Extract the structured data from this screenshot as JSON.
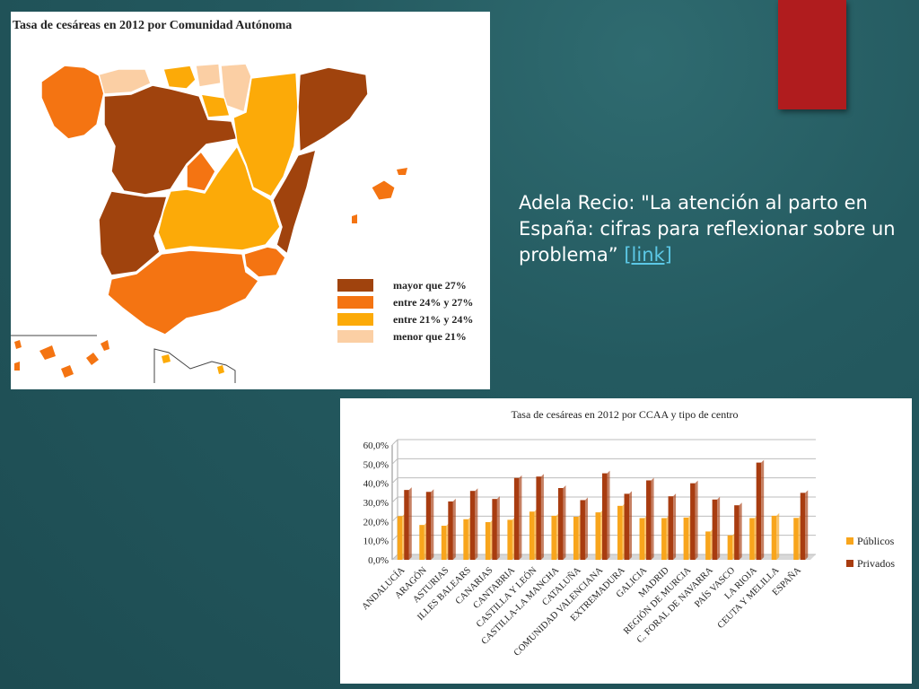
{
  "slide": {
    "quote_text": "Adela Recio: \"La atención al parto en España: cifras para reflexionar sobre un problema”",
    "link_label": "[link]"
  },
  "map": {
    "title": "Tasa de cesáreas en 2012 por Comunidad Autónoma",
    "legend": [
      {
        "label": "mayor que 27%",
        "color": "#a0430d"
      },
      {
        "label": "entre 24% y 27%",
        "color": "#f47412"
      },
      {
        "label": "entre 21% y 24%",
        "color": "#fcaa08"
      },
      {
        "label": "menor que 21%",
        "color": "#fbcfa4"
      }
    ]
  },
  "chart_data": {
    "type": "bar",
    "title": "Tasa de cesáreas en 2012 por CCAA y tipo de centro",
    "categories": [
      "ANDALUCÍA",
      "ARAGÓN",
      "ASTURIAS",
      "ILLES BALEARS",
      "CANARIAS",
      "CANTABRIA",
      "CASTILLA Y LEÓN",
      "CASTILLA-LA MANCHA",
      "CATALUÑA",
      "COMUNIDAD VALENCIANA",
      "EXTREMADURA",
      "GALICIA",
      "MADRID",
      "REGIÓN DE MURCIA",
      "C. FORAL DE NAVARRA",
      "PAÍS VASCO",
      "LA RIOJA",
      "CEUTA Y MELILLA",
      "ESPAÑA"
    ],
    "series": [
      {
        "name": "Públicos",
        "color": "#f8a51c",
        "values": [
          22.8,
          18.2,
          17.8,
          21.2,
          19.7,
          20.9,
          25.2,
          23.0,
          22.5,
          24.8,
          28.2,
          21.8,
          21.8,
          22.1,
          14.8,
          12.8,
          21.8,
          23.0,
          21.9
        ]
      },
      {
        "name": "Privados",
        "color": "#a83c10",
        "values": [
          36.5,
          35.5,
          30.5,
          36.0,
          31.8,
          42.8,
          43.5,
          37.5,
          31.2,
          45.2,
          34.5,
          41.5,
          33.2,
          40.0,
          31.5,
          28.5,
          50.8,
          null,
          35.0
        ]
      }
    ],
    "y_ticks": [
      "0,0%",
      "10,0%",
      "20,0%",
      "30,0%",
      "40,0%",
      "50,0%",
      "60,0%"
    ],
    "ylim": [
      0,
      60
    ],
    "legend_position": "right",
    "grid": true
  }
}
